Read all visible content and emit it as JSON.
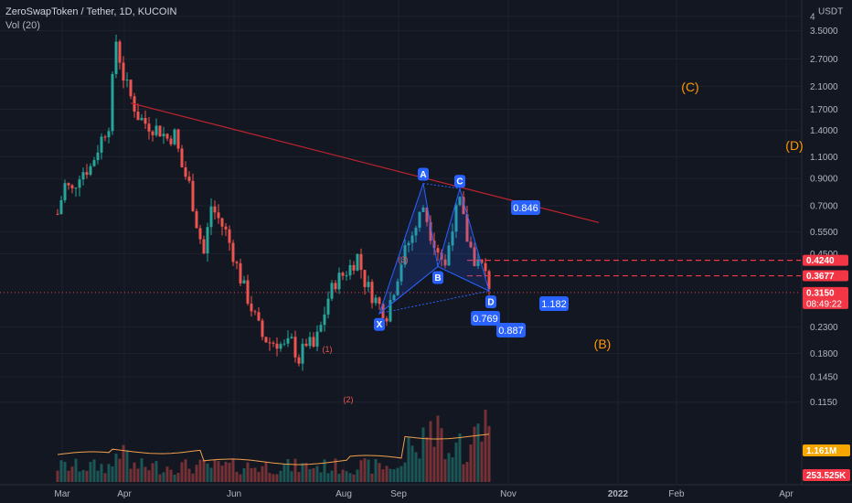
{
  "header": {
    "symbol": "ZeroSwapToken / Tether, 1D, KUCOIN",
    "volume_label": "Vol (20)"
  },
  "chart_data": {
    "type": "candlestick",
    "title": "ZeroSwapToken / Tether, 1D, KUCOIN",
    "currency": "USDT",
    "y_scale": "log",
    "ylim": [
      0.11,
      4.2
    ],
    "x_ticks": [
      "Mar",
      "Apr",
      "Jun",
      "Aug",
      "Sep",
      "Nov",
      "2022",
      "Feb",
      "Apr"
    ],
    "y_ticks": [
      "4",
      "3.5000",
      "2.7000",
      "2.1000",
      "1.7000",
      "1.4000",
      "1.1000",
      "0.9000",
      "0.7000",
      "0.5500",
      "0.4500",
      "0.3677",
      "0.3150",
      "0.2300",
      "0.1800",
      "0.1450",
      "0.1150"
    ],
    "price_path": [
      [
        0,
        0.65
      ],
      [
        2,
        0.85
      ],
      [
        4,
        0.8
      ],
      [
        6,
        0.95
      ],
      [
        9,
        1.0
      ],
      [
        12,
        1.3
      ],
      [
        14,
        1.5
      ],
      [
        16,
        3.2
      ],
      [
        18,
        2.3
      ],
      [
        20,
        1.9
      ],
      [
        22,
        1.6
      ],
      [
        24,
        1.5
      ],
      [
        26,
        1.45
      ],
      [
        28,
        1.4
      ],
      [
        30,
        1.3
      ],
      [
        32,
        1.35
      ],
      [
        34,
        1.0
      ],
      [
        36,
        0.85
      ],
      [
        38,
        0.6
      ],
      [
        40,
        0.45
      ],
      [
        42,
        0.7
      ],
      [
        44,
        0.62
      ],
      [
        46,
        0.55
      ],
      [
        48,
        0.45
      ],
      [
        50,
        0.36
      ],
      [
        52,
        0.3
      ],
      [
        54,
        0.25
      ],
      [
        56,
        0.21
      ],
      [
        58,
        0.2
      ],
      [
        60,
        0.2
      ],
      [
        62,
        0.19
      ],
      [
        64,
        0.2
      ],
      [
        66,
        0.17
      ],
      [
        68,
        0.2
      ],
      [
        70,
        0.19
      ],
      [
        72,
        0.23
      ],
      [
        74,
        0.3
      ],
      [
        76,
        0.35
      ],
      [
        78,
        0.37
      ],
      [
        80,
        0.4
      ],
      [
        82,
        0.44
      ],
      [
        84,
        0.35
      ],
      [
        86,
        0.31
      ],
      [
        88,
        0.28
      ],
      [
        90,
        0.26
      ],
      [
        92,
        0.33
      ],
      [
        94,
        0.42
      ],
      [
        96,
        0.5
      ],
      [
        98,
        0.58
      ],
      [
        100,
        0.7
      ],
      [
        102,
        0.55
      ],
      [
        104,
        0.47
      ],
      [
        106,
        0.4
      ],
      [
        108,
        0.6
      ],
      [
        110,
        0.72
      ],
      [
        112,
        0.52
      ],
      [
        114,
        0.43
      ],
      [
        116,
        0.4
      ],
      [
        118,
        0.34
      ]
    ],
    "current_price": 0.315,
    "price_labels": [
      {
        "value": 0.424,
        "text": "0.4240",
        "color": "#f23645"
      },
      {
        "value": 0.3677,
        "text": "0.3677",
        "color": "#f23645"
      },
      {
        "value": 0.315,
        "text": "0.3150",
        "color": "#f23645"
      }
    ],
    "countdown": "08:49:22",
    "volume_labels": [
      {
        "text": "1.161M",
        "color": "#f7a600"
      },
      {
        "text": "253.525K",
        "color": "#f23645"
      }
    ],
    "harmonic_pattern": {
      "points": [
        {
          "label": "X",
          "day": 88,
          "price": 0.26
        },
        {
          "label": "A",
          "day": 100,
          "price": 0.86
        },
        {
          "label": "B",
          "day": 104,
          "price": 0.4
        },
        {
          "label": "C",
          "day": 110,
          "price": 0.82
        },
        {
          "label": "D",
          "day": 118,
          "price": 0.32
        }
      ],
      "ratios": [
        "0.769",
        "0.846",
        "1.182",
        "0.887"
      ]
    },
    "trendline": {
      "from": {
        "day": 20,
        "price": 1.8
      },
      "to": {
        "day": 148,
        "price": 0.6
      },
      "color": "#c0242f"
    },
    "horizontal_levels": [
      0.424,
      0.3677
    ],
    "elliott_labels": [
      {
        "text": "(1)",
        "color": "#ef5350"
      },
      {
        "text": "(2)",
        "color": "#ef5350"
      },
      {
        "text": "(3)",
        "color": "#ef5350"
      },
      {
        "text": "(B)",
        "color": "#ff9800"
      },
      {
        "text": "(C)",
        "color": "#ff9800"
      },
      {
        "text": "(D)",
        "color": "#ff9800"
      }
    ]
  }
}
